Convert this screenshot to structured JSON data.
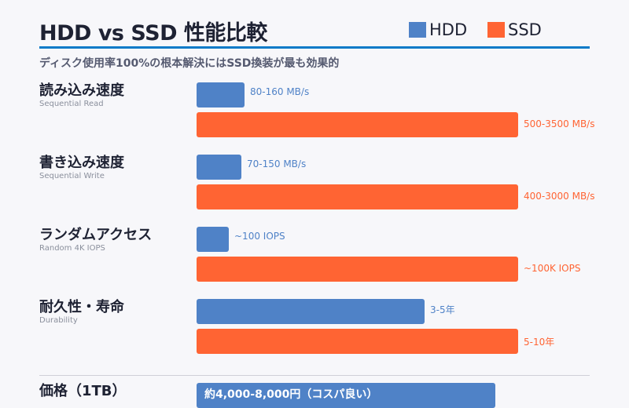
{
  "title": "HDD vs SSD 性能比較",
  "subtitle": "ディスク使用率100%の根本解決にはSSD換装が最も効果的",
  "colors": {
    "hdd": "#4f82c7",
    "ssd": "#ff6433",
    "accent": "#0b7ac8"
  },
  "chart_data": {
    "type": "bar",
    "orientation": "horizontal",
    "value_unit": "percent of full bar width",
    "legend": {
      "placement": "top-right",
      "entries": [
        "HDD",
        "SSD"
      ]
    },
    "categories": [
      {
        "label": "読み込み速度",
        "sublabel": "Sequential Read",
        "hdd": {
          "value": 15,
          "label": "80-160 MB/s"
        },
        "ssd": {
          "value": 100,
          "label": "500-3500 MB/s"
        }
      },
      {
        "label": "書き込み速度",
        "sublabel": "Sequential Write",
        "hdd": {
          "value": 14,
          "label": "70-150 MB/s"
        },
        "ssd": {
          "value": 100,
          "label": "400-3000 MB/s"
        }
      },
      {
        "label": "ランダムアクセス",
        "sublabel": "Random 4K IOPS",
        "hdd": {
          "value": 10,
          "label": "~100 IOPS"
        },
        "ssd": {
          "value": 100,
          "label": "~100K IOPS"
        }
      },
      {
        "label": "耐久性・寿命",
        "sublabel": "Durability",
        "hdd": {
          "value": 71,
          "label": "3-5年"
        },
        "ssd": {
          "value": 100,
          "label": "5-10年"
        }
      }
    ],
    "price": {
      "label": "価格（1TB）",
      "hdd": {
        "value": 93,
        "label": "約4,000-8,000円（コスパ良い）"
      }
    }
  }
}
